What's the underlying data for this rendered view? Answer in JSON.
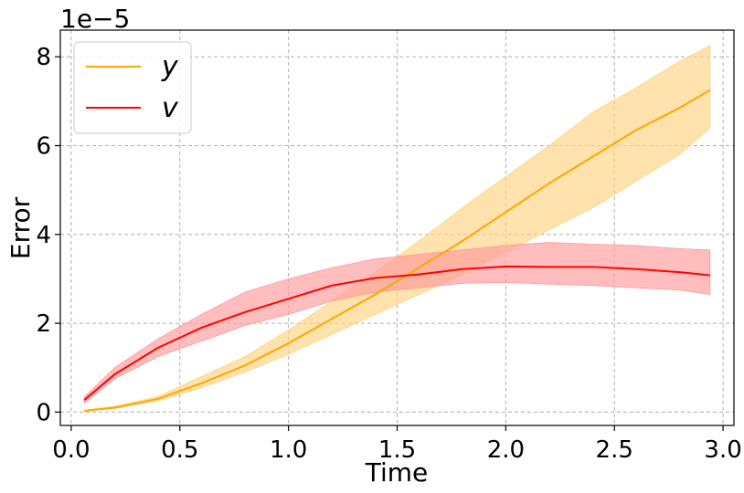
{
  "chart_data": {
    "type": "line",
    "xlabel": "Time",
    "ylabel": "Error",
    "offset_label": "1e−5",
    "xlim": [
      -0.05,
      3.05
    ],
    "ylim": [
      -0.3,
      8.6
    ],
    "xticks": [
      0.0,
      0.5,
      1.0,
      1.5,
      2.0,
      2.5,
      3.0
    ],
    "xtick_labels": [
      "0.0",
      "0.5",
      "1.0",
      "1.5",
      "2.0",
      "2.5",
      "3.0"
    ],
    "yticks": [
      0,
      2,
      4,
      6,
      8
    ],
    "ytick_labels": [
      "0",
      "2",
      "4",
      "6",
      "8"
    ],
    "grid": true,
    "legend_position": "top-left",
    "series": [
      {
        "name": "y",
        "color": "#FFA500",
        "band_color": "#FFD27F",
        "x": [
          0.06,
          0.2,
          0.4,
          0.6,
          0.8,
          1.0,
          1.2,
          1.4,
          1.6,
          1.8,
          2.0,
          2.2,
          2.4,
          2.6,
          2.8,
          2.94
        ],
        "values": [
          0.03,
          0.1,
          0.3,
          0.65,
          1.05,
          1.55,
          2.1,
          2.65,
          3.25,
          3.85,
          4.5,
          5.15,
          5.75,
          6.35,
          6.85,
          7.25
        ],
        "lower": [
          0.02,
          0.08,
          0.25,
          0.55,
          0.9,
          1.3,
          1.75,
          2.2,
          2.65,
          3.1,
          3.6,
          4.1,
          4.6,
          5.2,
          5.8,
          6.4
        ],
        "upper": [
          0.04,
          0.13,
          0.35,
          0.8,
          1.25,
          1.85,
          2.5,
          3.15,
          3.85,
          4.6,
          5.3,
          6.0,
          6.75,
          7.3,
          7.9,
          8.25
        ]
      },
      {
        "name": "v",
        "color": "#FF0000",
        "band_color": "#FF9999",
        "x": [
          0.06,
          0.2,
          0.4,
          0.6,
          0.8,
          1.0,
          1.2,
          1.4,
          1.6,
          1.8,
          2.0,
          2.2,
          2.4,
          2.6,
          2.8,
          2.94
        ],
        "values": [
          0.27,
          0.85,
          1.45,
          1.9,
          2.25,
          2.55,
          2.85,
          3.02,
          3.1,
          3.22,
          3.28,
          3.27,
          3.27,
          3.22,
          3.15,
          3.08
        ],
        "lower": [
          0.2,
          0.75,
          1.25,
          1.6,
          1.95,
          2.2,
          2.5,
          2.7,
          2.8,
          2.9,
          2.92,
          2.88,
          2.85,
          2.8,
          2.75,
          2.65
        ],
        "upper": [
          0.34,
          1.0,
          1.65,
          2.2,
          2.7,
          3.0,
          3.25,
          3.45,
          3.55,
          3.65,
          3.75,
          3.82,
          3.78,
          3.75,
          3.68,
          3.65
        ]
      }
    ]
  }
}
